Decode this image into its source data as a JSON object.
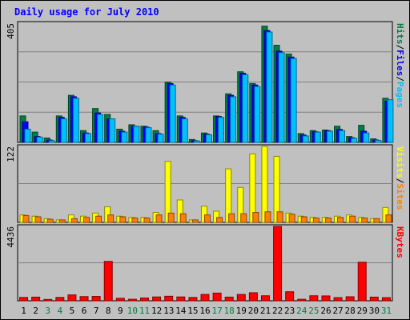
{
  "chart_data": {
    "type": "bar",
    "title": "Daily usage for July 2010",
    "categories": [
      "1",
      "2",
      "3",
      "4",
      "5",
      "6",
      "7",
      "8",
      "9",
      "10",
      "11",
      "12",
      "13",
      "14",
      "15",
      "16",
      "17",
      "18",
      "19",
      "20",
      "21",
      "22",
      "23",
      "24",
      "25",
      "26",
      "27",
      "28",
      "29",
      "30",
      "31"
    ],
    "weekend_days": [
      "3",
      "4",
      "10",
      "11",
      "17",
      "18",
      "24",
      "25",
      "31"
    ],
    "panels": [
      {
        "id": "hits-files-pages",
        "max_label": "405",
        "ymax": 405,
        "legend": [
          {
            "text": "Pages",
            "color": "#00c0ff"
          },
          {
            "text": "/",
            "color": "#000000"
          },
          {
            "text": "Files",
            "color": "#0000ff"
          },
          {
            "text": "/",
            "color": "#000000"
          },
          {
            "text": "Hits",
            "color": "#008040"
          }
        ],
        "series": [
          {
            "name": "Hits",
            "color": "#008040",
            "values": [
              90,
              35,
              15,
              90,
              160,
              40,
              115,
              95,
              45,
              60,
              55,
              40,
              205,
              90,
              10,
              32,
              90,
              165,
              240,
              200,
              395,
              330,
              300,
              30,
              40,
              42,
              55,
              20,
              58,
              12,
              150
            ]
          },
          {
            "name": "Files",
            "color": "#0000ff",
            "values": [
              70,
              20,
              8,
              85,
              155,
              32,
              100,
              80,
              38,
              55,
              52,
              30,
              200,
              85,
              6,
              28,
              88,
              160,
              235,
              195,
              380,
              310,
              290,
              25,
              36,
              40,
              44,
              16,
              38,
              8,
              140
            ]
          },
          {
            "name": "Pages",
            "color": "#00c0ff",
            "values": [
              45,
              18,
              6,
              80,
              150,
              30,
              95,
              80,
              35,
              55,
              50,
              28,
              195,
              80,
              5,
              26,
              85,
              155,
              230,
              190,
              375,
              305,
              285,
              22,
              35,
              38,
              40,
              14,
              32,
              7,
              145
            ]
          }
        ]
      },
      {
        "id": "sites-visits",
        "max_label": "122",
        "ymax": 122,
        "legend": [
          {
            "text": "Sites",
            "color": "#ff8000"
          },
          {
            "text": "/",
            "color": "#000000"
          },
          {
            "text": "Visits",
            "color": "#ffff00"
          }
        ],
        "series": [
          {
            "name": "Visits",
            "color": "#ffff00",
            "values": [
              12,
              10,
              6,
              4,
              12,
              10,
              15,
              25,
              10,
              8,
              8,
              16,
              98,
              36,
              4,
              26,
              18,
              86,
              56,
              110,
              122,
              106,
              15,
              10,
              8,
              8,
              10,
              12,
              8,
              6,
              24
            ]
          },
          {
            "name": "Sites",
            "color": "#ff8000",
            "values": [
              11,
              9,
              5,
              4,
              6,
              8,
              10,
              12,
              9,
              7,
              7,
              12,
              15,
              14,
              4,
              12,
              8,
              14,
              14,
              16,
              17,
              17,
              13,
              9,
              7,
              7,
              8,
              10,
              7,
              6,
              12
            ]
          }
        ]
      },
      {
        "id": "kbytes",
        "max_label": "4436",
        "ymax": 4436,
        "legend": [
          {
            "text": "KBytes",
            "color": "#ff0000"
          }
        ],
        "series": [
          {
            "name": "KBytes",
            "color": "#ff0000",
            "values": [
              200,
              220,
              80,
              200,
              350,
              250,
              260,
              2350,
              150,
              90,
              170,
              230,
              270,
              230,
              200,
              380,
              460,
              220,
              380,
              480,
              300,
              4436,
              540,
              90,
              300,
              290,
              190,
              240,
              2300,
              220,
              190
            ]
          }
        ]
      }
    ]
  }
}
